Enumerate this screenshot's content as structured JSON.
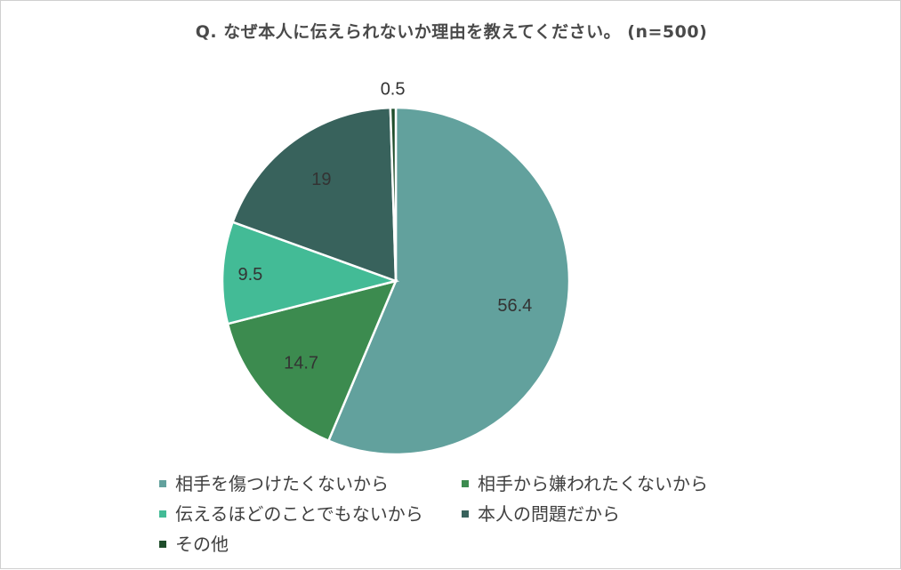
{
  "title": "Q.  なぜ本人に伝えられないか理由を教えてください。 (n=500)",
  "chart_data": {
    "type": "pie",
    "title": "Q.  なぜ本人に伝えられないか理由を教えてください。 (n=500)",
    "slices": [
      {
        "label": "相手を傷つけたくないから",
        "value": 56.4,
        "value_label": "56.4",
        "color": "#62a19d"
      },
      {
        "label": "相手から嫌われたくないから",
        "value": 14.7,
        "value_label": "14.7",
        "color": "#3c8b4f"
      },
      {
        "label": "伝えるほどのことでもないから",
        "value": 9.5,
        "value_label": "9.5",
        "color": "#43bb96"
      },
      {
        "label": "本人の問題だから",
        "value": 19,
        "value_label": "19",
        "color": "#38625c"
      },
      {
        "label": "その他",
        "value": 0.5,
        "value_label": "0.5",
        "color": "#1f4d2b"
      }
    ],
    "legend_position": "bottom",
    "start_angle": "12 o'clock, clockwise"
  }
}
